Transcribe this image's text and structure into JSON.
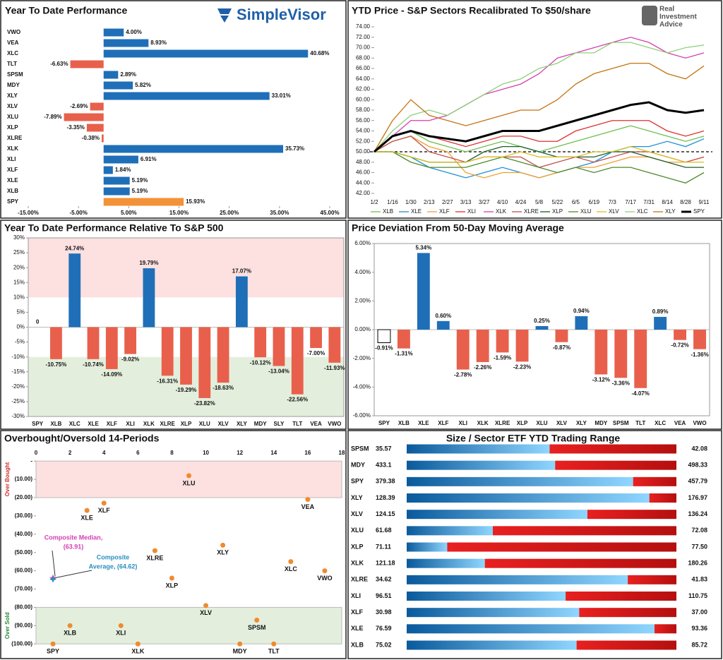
{
  "chart_data": [
    {
      "type": "hbar",
      "title": "Year To Date Performance",
      "logo": "SimpleVisor",
      "categories": [
        "VWO",
        "VEA",
        "XLC",
        "TLT",
        "SPSM",
        "MDY",
        "XLY",
        "XLV",
        "XLU",
        "XLP",
        "XLRE",
        "XLK",
        "XLI",
        "XLF",
        "XLE",
        "XLB",
        "SPY"
      ],
      "values": [
        4.0,
        8.93,
        40.68,
        -6.63,
        2.89,
        5.82,
        33.01,
        -2.69,
        -7.89,
        -3.35,
        -0.38,
        35.73,
        6.91,
        1.84,
        5.19,
        5.19,
        15.93
      ],
      "value_labels": [
        "4.00%",
        "8.93%",
        "40.68%",
        "-6.63%",
        "2.89%",
        "5.82%",
        "33.01%",
        "-2.69%",
        "-7.89%",
        "-3.35%",
        "-0.38%",
        "35.73%",
        "6.91%",
        "1.84%",
        "5.19%",
        "5.19%",
        "15.93%"
      ],
      "colors": [
        "#1f6fb8",
        "#1f6fb8",
        "#1f6fb8",
        "#e8604c",
        "#1f6fb8",
        "#1f6fb8",
        "#1f6fb8",
        "#e8604c",
        "#e8604c",
        "#e8604c",
        "#e8604c",
        "#1f6fb8",
        "#1f6fb8",
        "#1f6fb8",
        "#1f6fb8",
        "#1f6fb8",
        "#f39237"
      ],
      "xlim": [
        -15,
        45
      ],
      "xticks": [
        {
          "value": -15,
          "label": "-15.00%"
        },
        {
          "value": -5,
          "label": "-5.00%"
        },
        {
          "value": 5,
          "label": "5.00%"
        },
        {
          "value": 15,
          "label": "15.00%"
        },
        {
          "value": 25,
          "label": "25.00%"
        },
        {
          "value": 35,
          "label": "35.00%"
        },
        {
          "value": 45,
          "label": "45.00%"
        }
      ]
    },
    {
      "type": "line",
      "title": "YTD Price - S&P Sectors Recalibrated To $50/share",
      "logo_lines": [
        "Real",
        "Investment",
        "Advice"
      ],
      "x": [
        "1/2",
        "1/16",
        "1/30",
        "2/13",
        "2/27",
        "3/13",
        "3/27",
        "4/10",
        "4/24",
        "5/8",
        "5/22",
        "6/5",
        "6/19",
        "7/3",
        "7/17",
        "7/31",
        "8/14",
        "8/28",
        "9/11"
      ],
      "series": [
        {
          "name": "XLB",
          "color": "#6cbf4f",
          "width": 1.3,
          "values": [
            50,
            53,
            54,
            52,
            51,
            50,
            51,
            52,
            51,
            50,
            51,
            52,
            53,
            54,
            55,
            54,
            53,
            52,
            53
          ]
        },
        {
          "name": "XLE",
          "color": "#1e90d6",
          "width": 1.3,
          "values": [
            50,
            50,
            49,
            47,
            46,
            45,
            46,
            47,
            46,
            45,
            46,
            47,
            48,
            50,
            51,
            51,
            52,
            51,
            52.5
          ]
        },
        {
          "name": "XLF",
          "color": "#f0a030",
          "width": 1.3,
          "values": [
            50,
            52,
            53,
            51,
            50,
            46,
            45,
            46,
            46,
            45,
            46,
            47,
            47,
            48,
            49,
            49,
            48,
            48,
            49
          ]
        },
        {
          "name": "XLI",
          "color": "#e03030",
          "width": 1.3,
          "values": [
            50,
            53,
            54,
            53,
            52,
            51,
            52,
            53,
            53,
            52,
            52,
            54,
            55,
            56,
            56,
            56,
            54,
            53,
            54
          ]
        },
        {
          "name": "XLK",
          "color": "#d63fb0",
          "width": 1.3,
          "values": [
            50,
            53,
            56,
            56,
            57,
            59,
            61,
            62,
            63,
            65,
            68,
            69,
            70,
            71,
            72,
            71,
            69,
            68,
            69
          ]
        },
        {
          "name": "XLRE",
          "color": "#c0504d",
          "width": 1.3,
          "values": [
            50,
            52,
            53,
            50,
            49,
            48,
            49,
            49,
            49,
            47,
            48,
            49,
            48,
            49,
            50,
            50,
            49,
            48,
            49
          ]
        },
        {
          "name": "XLP",
          "color": "#1d5e2a",
          "width": 1.3,
          "values": [
            50,
            50,
            49,
            48,
            48,
            48,
            50,
            51,
            51,
            50,
            49,
            49,
            49,
            50,
            50,
            49,
            48,
            47,
            47
          ]
        },
        {
          "name": "XLU",
          "color": "#4d8a2a",
          "width": 1.3,
          "values": [
            50,
            50,
            48,
            47,
            47,
            47,
            48,
            49,
            48,
            47,
            46,
            47,
            46,
            47,
            47,
            46,
            45,
            44,
            46
          ]
        },
        {
          "name": "XLV",
          "color": "#d8c020",
          "width": 1.3,
          "values": [
            50,
            50,
            49,
            48,
            48,
            48,
            49,
            49,
            50,
            49,
            49,
            49,
            50,
            50,
            51,
            50,
            49,
            48,
            48
          ]
        },
        {
          "name": "XLC",
          "color": "#8fd07a",
          "width": 1.3,
          "values": [
            50,
            54,
            57,
            58,
            57,
            59,
            61,
            63,
            64,
            66,
            67,
            69,
            69,
            71,
            71,
            70,
            69,
            70,
            70.5
          ]
        },
        {
          "name": "XLY",
          "color": "#c5730f",
          "width": 1.3,
          "values": [
            50,
            56,
            60,
            57,
            56,
            55,
            56,
            57,
            58,
            58,
            60,
            63,
            65,
            66,
            67,
            67,
            65,
            64,
            66.5
          ]
        },
        {
          "name": "SPY",
          "color": "#000000",
          "width": 3,
          "values": [
            50,
            53,
            54,
            53,
            52.5,
            52,
            53,
            54,
            54,
            54,
            55,
            56,
            57,
            58,
            59,
            59.5,
            58,
            57.5,
            58
          ]
        }
      ],
      "reference_line": 50,
      "ylim": [
        42,
        74
      ],
      "yticks": [
        {
          "value": 42,
          "label": "42.00"
        },
        {
          "value": 44,
          "label": "44.00"
        },
        {
          "value": 46,
          "label": "46.00"
        },
        {
          "value": 48,
          "label": "48.00"
        },
        {
          "value": 50,
          "label": "50.00"
        },
        {
          "value": 52,
          "label": "52.00"
        },
        {
          "value": 54,
          "label": "54.00"
        },
        {
          "value": 56,
          "label": "56.00"
        },
        {
          "value": 58,
          "label": "58.00"
        },
        {
          "value": 60,
          "label": "60.00"
        },
        {
          "value": 62,
          "label": "62.00"
        },
        {
          "value": 64,
          "label": "64.00"
        },
        {
          "value": 66,
          "label": "66.00"
        },
        {
          "value": 68,
          "label": "68.00"
        },
        {
          "value": 70,
          "label": "70.00"
        },
        {
          "value": 72,
          "label": "72.00"
        },
        {
          "value": 74,
          "label": "74.00"
        }
      ]
    },
    {
      "type": "bar",
      "title": "Year To Date Performance Relative To S&P 500",
      "categories": [
        "SPY",
        "XLB",
        "XLC",
        "XLE",
        "XLF",
        "XLI",
        "XLK",
        "XLRE",
        "XLP",
        "XLU",
        "XLV",
        "XLY",
        "MDY",
        "SLY",
        "TLT",
        "VEA",
        "VWO"
      ],
      "values": [
        0,
        -10.75,
        24.74,
        -10.74,
        -14.09,
        -9.02,
        19.79,
        -16.31,
        -19.29,
        -23.82,
        -18.63,
        17.07,
        -10.12,
        -13.04,
        -22.56,
        -7.0,
        -11.93
      ],
      "value_labels": [
        "0",
        "-10.75%",
        "24.74%",
        "-10.74%",
        "-14.09%",
        "-9.02%",
        "19.79%",
        "-16.31%",
        "-19.29%",
        "-23.82%",
        "-18.63%",
        "17.07%",
        "-10.12%",
        "-13.04%",
        "-22.56%",
        "-7.00%",
        "-11.93%"
      ],
      "colors": [
        "#1f6fb8",
        "#e8604c",
        "#1f6fb8",
        "#e8604c",
        "#e8604c",
        "#e8604c",
        "#1f6fb8",
        "#e8604c",
        "#e8604c",
        "#e8604c",
        "#e8604c",
        "#1f6fb8",
        "#e8604c",
        "#e8604c",
        "#e8604c",
        "#e8604c",
        "#e8604c"
      ],
      "bands": [
        {
          "from": 10,
          "to": 30,
          "color": "#fde0e0"
        },
        {
          "from": -30,
          "to": -10,
          "color": "#e3efdc"
        }
      ],
      "ylim": [
        -30,
        30
      ],
      "yticks": [
        {
          "value": -30,
          "label": "-30%"
        },
        {
          "value": -25,
          "label": "-25%"
        },
        {
          "value": -20,
          "label": "-20%"
        },
        {
          "value": -15,
          "label": "-15%"
        },
        {
          "value": -10,
          "label": "-10%"
        },
        {
          "value": -5,
          "label": "-5%"
        },
        {
          "value": 0,
          "label": "0%"
        },
        {
          "value": 5,
          "label": "5%"
        },
        {
          "value": 10,
          "label": "10%"
        },
        {
          "value": 15,
          "label": "15%"
        },
        {
          "value": 20,
          "label": "20%"
        },
        {
          "value": 25,
          "label": "25%"
        },
        {
          "value": 30,
          "label": "30%"
        }
      ]
    },
    {
      "type": "bar",
      "title": "Price Deviation From 50-Day Moving Average",
      "categories": [
        "SPY",
        "XLB",
        "XLE",
        "XLF",
        "XLI",
        "XLK",
        "XLRE",
        "XLP",
        "XLU",
        "XLV",
        "XLY",
        "MDY",
        "SPSM",
        "TLT",
        "XLC",
        "VEA",
        "VWO"
      ],
      "values": [
        -0.91,
        -1.31,
        5.34,
        0.6,
        -2.78,
        -2.26,
        -1.59,
        -2.23,
        0.25,
        -0.87,
        0.94,
        -3.12,
        -3.36,
        -4.07,
        0.89,
        -0.72,
        -1.36
      ],
      "value_labels": [
        "-0.91%",
        "-1.31%",
        "5.34%",
        "0.60%",
        "-2.78%",
        "-2.26%",
        "-1.59%",
        "-2.23%",
        "0.25%",
        "-0.87%",
        "0.94%",
        "-3.12%",
        "-3.36%",
        "-4.07%",
        "0.89%",
        "-0.72%",
        "-1.36%"
      ],
      "colors": [
        "#ffffff",
        "#e8604c",
        "#1f6fb8",
        "#1f6fb8",
        "#e8604c",
        "#e8604c",
        "#e8604c",
        "#e8604c",
        "#1f6fb8",
        "#e8604c",
        "#1f6fb8",
        "#e8604c",
        "#e8604c",
        "#e8604c",
        "#1f6fb8",
        "#e8604c",
        "#e8604c"
      ],
      "ylim": [
        -6,
        6
      ],
      "yticks": [
        {
          "value": -6,
          "label": "-6.00%"
        },
        {
          "value": -4,
          "label": "-4.00%"
        },
        {
          "value": -2,
          "label": "-2.00%"
        },
        {
          "value": 0,
          "label": "0.00%"
        },
        {
          "value": 2,
          "label": "2.00%"
        },
        {
          "value": 4,
          "label": "4.00%"
        },
        {
          "value": 6,
          "label": "6.00%"
        }
      ]
    },
    {
      "type": "scatter",
      "title": "Overbought/Oversold 14-Periods",
      "labels": [
        "XLU",
        "XLF",
        "XLE",
        "VEA",
        "XLY",
        "XLRE",
        "XLC",
        "VWO",
        "XLP",
        "XLV",
        "SPSM",
        "XLB",
        "XLI",
        "SPY",
        "XLK",
        "MDY",
        "TLT"
      ],
      "x": [
        9,
        4,
        3,
        16,
        11,
        7,
        15,
        17,
        8,
        10,
        13,
        2,
        5,
        1,
        6,
        12,
        14
      ],
      "y": [
        -8,
        -23,
        -27,
        -21,
        -46,
        -49,
        -55,
        -60,
        -64,
        -79,
        -87,
        -90,
        -90,
        -100,
        -100,
        -100,
        -100
      ],
      "color": "#f08a30",
      "annotations": [
        {
          "lines": [
            "Composite Median,",
            "(63.91)"
          ],
          "x": 1,
          "y": -63.91,
          "color": "#d63fb0"
        },
        {
          "lines": [
            "Composite",
            "Average,  (64.62)"
          ],
          "x": 1,
          "y": -64.62,
          "color": "#2a8fc0"
        }
      ],
      "bands": [
        {
          "from": 0,
          "to": -20,
          "color": "#fde0e0",
          "label": "Over Bought",
          "label_color": "#d03030"
        },
        {
          "from": -80,
          "to": -100,
          "color": "#e3efdc",
          "label": "Over Sold",
          "label_color": "#2a8a3a"
        }
      ],
      "xlim": [
        0,
        18
      ],
      "xticks": [
        0,
        2,
        4,
        6,
        8,
        10,
        12,
        14,
        16,
        18
      ],
      "ylim": [
        -103,
        2
      ],
      "yticks": [
        {
          "value": 0,
          "label": "-"
        },
        {
          "value": -10,
          "label": "(10.00)"
        },
        {
          "value": -20,
          "label": "(20.00)"
        },
        {
          "value": -30,
          "label": "(30.00)"
        },
        {
          "value": -40,
          "label": "(40.00)"
        },
        {
          "value": -50,
          "label": "(50.00)"
        },
        {
          "value": -60,
          "label": "(60.00)"
        },
        {
          "value": -70,
          "label": "(70.00)"
        },
        {
          "value": -80,
          "label": "(80.00)"
        },
        {
          "value": -90,
          "label": "(90.00)"
        },
        {
          "value": -100,
          "label": "(100.00)"
        }
      ]
    },
    {
      "type": "range",
      "title": "Size / Sector ETF YTD Trading Range",
      "categories": [
        "SPSM",
        "MDY",
        "SPY",
        "XLY",
        "XLV",
        "XLU",
        "XLP",
        "XLK",
        "XLRE",
        "XLI",
        "XLF",
        "XLE",
        "XLB"
      ],
      "lows": [
        35.57,
        433.1,
        379.38,
        128.39,
        124.15,
        61.68,
        71.11,
        121.18,
        34.62,
        96.51,
        30.98,
        76.59,
        75.02
      ],
      "low_labels": [
        "35.57",
        "433.1",
        "379.38",
        "128.39",
        "124.15",
        "61.68",
        "71.11",
        "121.18",
        "34.62",
        "96.51",
        "30.98",
        "76.59",
        "75.02"
      ],
      "highs": [
        42.08,
        498.33,
        457.79,
        176.97,
        136.24,
        72.08,
        77.5,
        180.26,
        41.83,
        110.75,
        37.0,
        93.36,
        85.72
      ],
      "high_labels": [
        "42.08",
        "498.33",
        "457.79",
        "176.97",
        "136.24",
        "72.08",
        "77.50",
        "180.26",
        "41.83",
        "110.75",
        "37.00",
        "93.36",
        "85.72"
      ],
      "current": [
        39.02,
        469,
        445.2,
        172.1,
        132.25,
        65.0,
        72.07,
        138.3,
        40.53,
        104.9,
        34.83,
        92.0,
        81.76
      ]
    }
  ]
}
